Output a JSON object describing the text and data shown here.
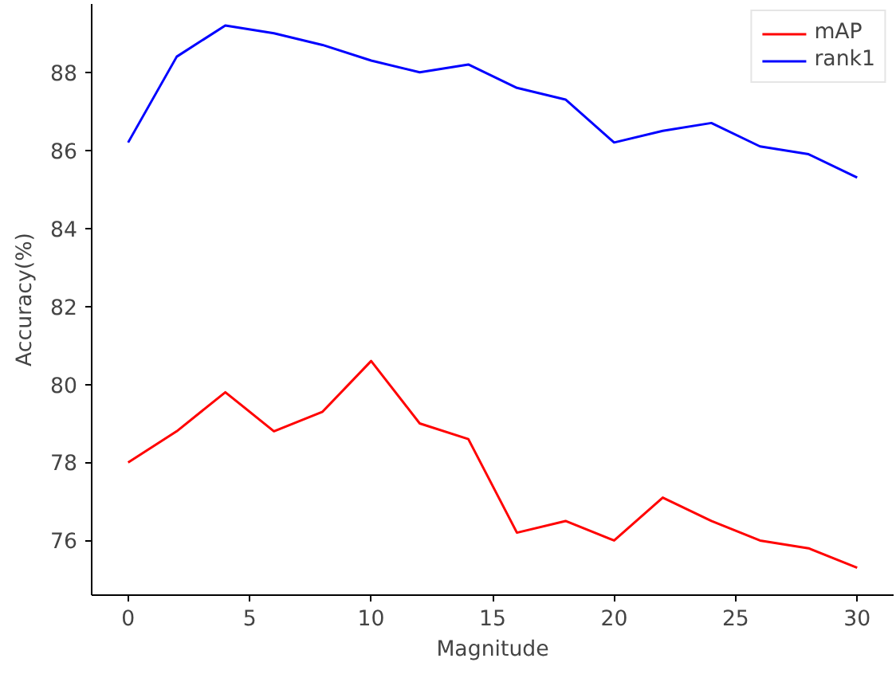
{
  "chart_data": {
    "type": "line",
    "xlabel": "Magnitude",
    "ylabel": "Accuracy(%)",
    "x": [
      0,
      2,
      4,
      6,
      8,
      10,
      12,
      14,
      16,
      18,
      20,
      22,
      24,
      26,
      28,
      30
    ],
    "series": [
      {
        "name": "mAP",
        "color": "#ff0000",
        "values": [
          78.0,
          78.8,
          79.8,
          78.8,
          79.3,
          80.6,
          79.0,
          78.6,
          76.2,
          76.5,
          76.0,
          77.1,
          76.5,
          76.0,
          75.8,
          75.3
        ]
      },
      {
        "name": "rank1",
        "color": "#0000ff",
        "values": [
          86.2,
          88.4,
          89.2,
          89.0,
          88.7,
          88.3,
          88.0,
          88.2,
          87.6,
          87.3,
          86.2,
          86.5,
          86.7,
          86.1,
          85.9,
          85.3
        ]
      }
    ],
    "xlim": [
      -1.5,
      31.5
    ],
    "ylim": [
      74.6,
      89.75
    ],
    "xticks": [
      0,
      5,
      10,
      15,
      20,
      25,
      30
    ],
    "yticks": [
      76,
      78,
      80,
      82,
      84,
      86,
      88
    ],
    "grid": false,
    "legend": "top right",
    "line_style": "solid",
    "marker": "none"
  }
}
